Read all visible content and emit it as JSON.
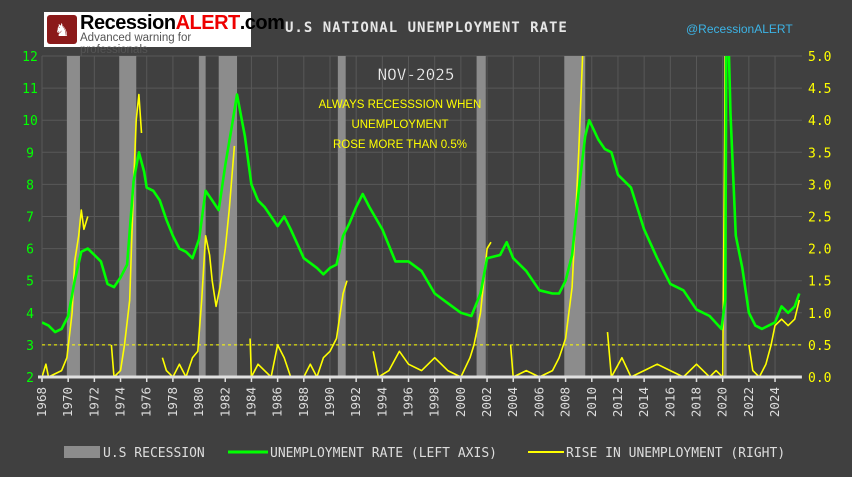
{
  "header": {
    "logo_main": "Recession",
    "logo_accent": "ALERT",
    "logo_suffix": ".com",
    "logo_tagline": "Advanced warning for professionals",
    "title": "U.S NATIONAL UNEMPLOYMENT RATE",
    "handle": "@RecessionALERT"
  },
  "colors": {
    "background": "#404040",
    "unemployment": "#00ff00",
    "rise": "#ffff00",
    "recession": "#8c8c8c",
    "threshold": "#ffff00"
  },
  "chart_data": {
    "type": "line",
    "title": "U.S NATIONAL UNEMPLOYMENT RATE",
    "date_label": "NOV-2025",
    "annotation": [
      "ALWAYS RECESSSION WHEN",
      "UNEMPLOYMENT",
      "ROSE MORE THAN 0.5%"
    ],
    "xlim": [
      1968,
      2025.9
    ],
    "x_ticks": [
      "1968",
      "1970",
      "1972",
      "1974",
      "1976",
      "1978",
      "1980",
      "1982",
      "1984",
      "1986",
      "1988",
      "1990",
      "1992",
      "1994",
      "1996",
      "1998",
      "2000",
      "2002",
      "2004",
      "2006",
      "2008",
      "2010",
      "2012",
      "2014",
      "2016",
      "2018",
      "2020",
      "2022",
      "2024"
    ],
    "left_axis": {
      "ylim": [
        2,
        12
      ],
      "ticks": [
        "2",
        "3",
        "4",
        "5",
        "6",
        "7",
        "8",
        "9",
        "10",
        "11",
        "12"
      ]
    },
    "right_axis": {
      "ylim": [
        0,
        5
      ],
      "ticks": [
        "0.0",
        "0.5",
        "1.0",
        "1.5",
        "2.0",
        "2.5",
        "3.0",
        "3.5",
        "4.0",
        "4.5",
        "5.0"
      ]
    },
    "threshold": 0.5,
    "recessions": [
      [
        1969.9,
        1970.9
      ],
      [
        1973.9,
        1975.2
      ],
      [
        1980.0,
        1980.5
      ],
      [
        1981.5,
        1982.9
      ],
      [
        1990.6,
        1991.2
      ],
      [
        2001.2,
        2001.9
      ],
      [
        2007.9,
        2009.5
      ],
      [
        2020.1,
        2020.3
      ]
    ],
    "legend": [
      "U.S RECESSION",
      "UNEMPLOYMENT RATE (LEFT AXIS)",
      "RISE IN UNEMPLOYMENT (RIGHT)"
    ],
    "series": [
      {
        "name": "UNEMPLOYMENT RATE (LEFT AXIS)",
        "axis": "left",
        "points": [
          [
            1968.0,
            3.7
          ],
          [
            1968.5,
            3.6
          ],
          [
            1969.0,
            3.4
          ],
          [
            1969.5,
            3.5
          ],
          [
            1970.0,
            3.9
          ],
          [
            1970.5,
            5.0
          ],
          [
            1971.0,
            5.9
          ],
          [
            1971.5,
            6.0
          ],
          [
            1972.0,
            5.8
          ],
          [
            1972.5,
            5.6
          ],
          [
            1973.0,
            4.9
          ],
          [
            1973.5,
            4.8
          ],
          [
            1974.0,
            5.1
          ],
          [
            1974.5,
            5.5
          ],
          [
            1975.0,
            8.1
          ],
          [
            1975.4,
            9.0
          ],
          [
            1975.8,
            8.4
          ],
          [
            1976.0,
            7.9
          ],
          [
            1976.5,
            7.8
          ],
          [
            1977.0,
            7.5
          ],
          [
            1977.5,
            6.9
          ],
          [
            1978.0,
            6.4
          ],
          [
            1978.5,
            6.0
          ],
          [
            1979.0,
            5.9
          ],
          [
            1979.5,
            5.7
          ],
          [
            1980.0,
            6.3
          ],
          [
            1980.5,
            7.8
          ],
          [
            1981.0,
            7.5
          ],
          [
            1981.5,
            7.2
          ],
          [
            1982.0,
            8.6
          ],
          [
            1982.5,
            9.8
          ],
          [
            1982.9,
            10.8
          ],
          [
            1983.5,
            9.5
          ],
          [
            1984.0,
            8.0
          ],
          [
            1984.5,
            7.5
          ],
          [
            1985.0,
            7.3
          ],
          [
            1986.0,
            6.7
          ],
          [
            1986.5,
            7.0
          ],
          [
            1987.0,
            6.6
          ],
          [
            1988.0,
            5.7
          ],
          [
            1989.0,
            5.4
          ],
          [
            1989.5,
            5.2
          ],
          [
            1990.0,
            5.4
          ],
          [
            1990.5,
            5.5
          ],
          [
            1991.0,
            6.4
          ],
          [
            1991.5,
            6.8
          ],
          [
            1992.0,
            7.3
          ],
          [
            1992.5,
            7.7
          ],
          [
            1993.0,
            7.3
          ],
          [
            1994.0,
            6.6
          ],
          [
            1995.0,
            5.6
          ],
          [
            1996.0,
            5.6
          ],
          [
            1997.0,
            5.3
          ],
          [
            1998.0,
            4.6
          ],
          [
            1999.0,
            4.3
          ],
          [
            2000.0,
            4.0
          ],
          [
            2000.8,
            3.9
          ],
          [
            2001.5,
            4.6
          ],
          [
            2002.0,
            5.7
          ],
          [
            2003.0,
            5.8
          ],
          [
            2003.5,
            6.2
          ],
          [
            2004.0,
            5.7
          ],
          [
            2005.0,
            5.3
          ],
          [
            2006.0,
            4.7
          ],
          [
            2007.0,
            4.6
          ],
          [
            2007.5,
            4.6
          ],
          [
            2008.0,
            5.0
          ],
          [
            2008.5,
            5.8
          ],
          [
            2009.0,
            7.8
          ],
          [
            2009.5,
            9.5
          ],
          [
            2009.8,
            10.0
          ],
          [
            2010.5,
            9.4
          ],
          [
            2011.0,
            9.1
          ],
          [
            2011.5,
            9.0
          ],
          [
            2012.0,
            8.3
          ],
          [
            2013.0,
            7.9
          ],
          [
            2014.0,
            6.6
          ],
          [
            2015.0,
            5.7
          ],
          [
            2016.0,
            4.9
          ],
          [
            2017.0,
            4.7
          ],
          [
            2018.0,
            4.1
          ],
          [
            2019.0,
            3.9
          ],
          [
            2019.9,
            3.5
          ],
          [
            2020.2,
            4.4
          ],
          [
            2020.3,
            14.8
          ],
          [
            2020.6,
            10.2
          ],
          [
            2021.0,
            6.4
          ],
          [
            2021.5,
            5.4
          ],
          [
            2022.0,
            4.0
          ],
          [
            2022.5,
            3.6
          ],
          [
            2023.0,
            3.5
          ],
          [
            2023.5,
            3.6
          ],
          [
            2024.0,
            3.7
          ],
          [
            2024.5,
            4.2
          ],
          [
            2025.0,
            4.0
          ],
          [
            2025.5,
            4.2
          ],
          [
            2025.85,
            4.6
          ]
        ]
      },
      {
        "name": "RISE IN UNEMPLOYMENT (RIGHT)",
        "axis": "right",
        "points": [
          [
            1968.0,
            0
          ],
          [
            1968.3,
            0.2
          ],
          [
            1968.5,
            0
          ],
          [
            1969.5,
            0.1
          ],
          [
            1969.9,
            0.3
          ],
          [
            1970.3,
            1.0
          ],
          [
            1970.5,
            1.8
          ],
          [
            1970.8,
            2.2
          ],
          [
            1971.0,
            2.6
          ],
          [
            1971.2,
            2.3
          ],
          [
            1971.5,
            2.5
          ],
          null,
          [
            1973.3,
            0.5
          ],
          [
            1973.5,
            0
          ],
          [
            1974.0,
            0.1
          ],
          [
            1974.3,
            0.5
          ],
          [
            1974.7,
            1.2
          ],
          [
            1975.0,
            3.0
          ],
          [
            1975.2,
            4.0
          ],
          [
            1975.4,
            4.4
          ],
          [
            1975.6,
            3.8
          ],
          null,
          [
            1977.2,
            0.3
          ],
          [
            1977.5,
            0.1
          ],
          [
            1978.0,
            0
          ],
          [
            1978.5,
            0.2
          ],
          [
            1979.0,
            0
          ],
          [
            1979.5,
            0.3
          ],
          [
            1979.9,
            0.4
          ],
          [
            1980.2,
            1.2
          ],
          [
            1980.5,
            2.2
          ],
          [
            1980.8,
            1.9
          ],
          [
            1981.0,
            1.5
          ],
          [
            1981.3,
            1.1
          ],
          [
            1981.6,
            1.4
          ],
          [
            1982.0,
            2.0
          ],
          [
            1982.3,
            2.6
          ],
          [
            1982.7,
            3.6
          ],
          null,
          [
            1983.9,
            0.6
          ],
          [
            1984.0,
            0
          ],
          [
            1984.5,
            0.2
          ],
          [
            1985.0,
            0.1
          ],
          [
            1985.5,
            0
          ],
          [
            1986.0,
            0.5
          ],
          [
            1986.5,
            0.3
          ],
          [
            1987.0,
            0
          ],
          [
            1988.0,
            0
          ],
          [
            1988.5,
            0.2
          ],
          [
            1989.0,
            0
          ],
          [
            1989.5,
            0.3
          ],
          [
            1990.0,
            0.4
          ],
          [
            1990.5,
            0.6
          ],
          [
            1991.0,
            1.3
          ],
          [
            1991.3,
            1.5
          ],
          null,
          [
            1993.3,
            0.4
          ],
          [
            1993.7,
            0
          ],
          [
            1994.5,
            0.1
          ],
          [
            1995.3,
            0.4
          ],
          [
            1996.0,
            0.2
          ],
          [
            1997.0,
            0.1
          ],
          [
            1998.0,
            0.3
          ],
          [
            1999.0,
            0.1
          ],
          [
            2000.0,
            0
          ],
          [
            2000.7,
            0.3
          ],
          [
            2001.0,
            0.5
          ],
          [
            2001.5,
            1.0
          ],
          [
            2002.0,
            2.0
          ],
          [
            2002.3,
            2.1
          ],
          null,
          [
            2003.8,
            0.5
          ],
          [
            2004.0,
            0
          ],
          [
            2005.0,
            0.1
          ],
          [
            2006.0,
            0
          ],
          [
            2007.0,
            0.1
          ],
          [
            2007.5,
            0.3
          ],
          [
            2008.0,
            0.6
          ],
          [
            2008.5,
            1.4
          ],
          [
            2009.0,
            3.5
          ],
          [
            2009.3,
            5.0
          ],
          null,
          [
            2011.2,
            0.7
          ],
          [
            2011.5,
            0
          ],
          [
            2012.3,
            0.3
          ],
          [
            2013.0,
            0
          ],
          [
            2014.0,
            0.1
          ],
          [
            2015.0,
            0.2
          ],
          [
            2016.0,
            0.1
          ],
          [
            2017.0,
            0
          ],
          [
            2018.0,
            0.2
          ],
          [
            2019.0,
            0
          ],
          [
            2019.5,
            0.1
          ],
          [
            2020.0,
            0
          ],
          [
            2020.2,
            5.0
          ],
          null,
          [
            2022.0,
            0.5
          ],
          [
            2022.3,
            0.1
          ],
          [
            2022.8,
            0
          ],
          [
            2023.3,
            0.2
          ],
          [
            2023.7,
            0.5
          ],
          [
            2024.0,
            0.8
          ],
          [
            2024.5,
            0.9
          ],
          [
            2025.0,
            0.8
          ],
          [
            2025.5,
            0.9
          ],
          [
            2025.85,
            1.2
          ]
        ]
      }
    ]
  }
}
